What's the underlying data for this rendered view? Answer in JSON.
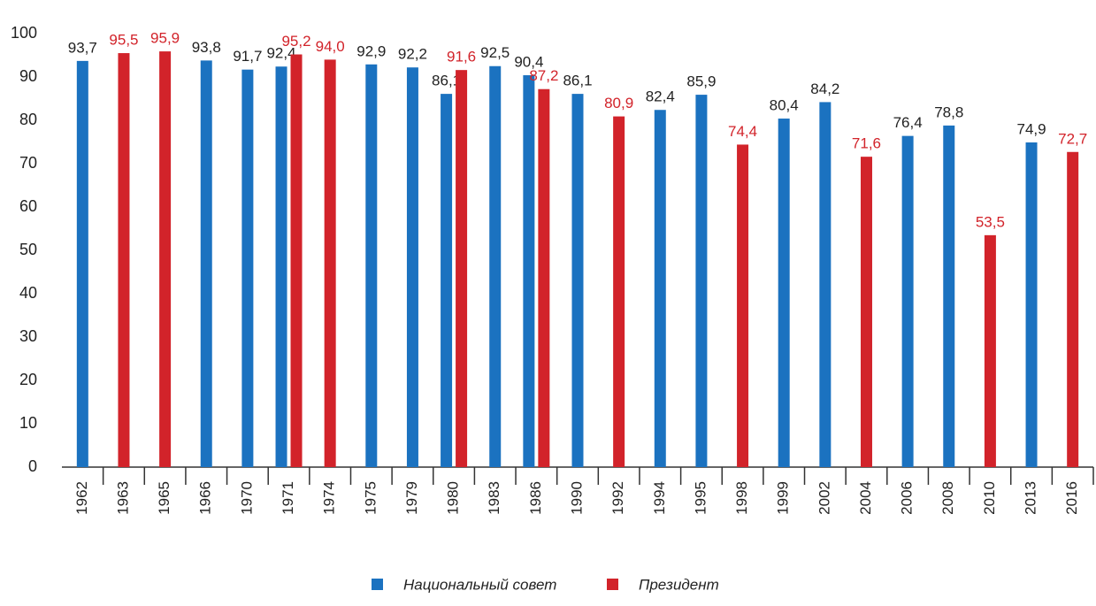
{
  "chart_data": {
    "type": "bar",
    "categories": [
      "1962",
      "1963",
      "1965",
      "1966",
      "1970",
      "1971",
      "1974",
      "1975",
      "1979",
      "1980",
      "1983",
      "1986",
      "1990",
      "1992",
      "1994",
      "1995",
      "1998",
      "1999",
      "2002",
      "2004",
      "2006",
      "2008",
      "2010",
      "2013",
      "2016"
    ],
    "series": [
      {
        "name": "Национальный совет",
        "color": "#1b72c0",
        "label_color": "#222222",
        "values": [
          93.7,
          null,
          null,
          93.8,
          91.7,
          92.4,
          null,
          92.9,
          92.2,
          86.1,
          92.5,
          90.4,
          86.1,
          null,
          82.4,
          85.9,
          null,
          80.4,
          84.2,
          null,
          76.4,
          78.8,
          null,
          74.9,
          null
        ],
        "value_labels": [
          "93,7",
          null,
          null,
          "93,8",
          "91,7",
          "92,4",
          null,
          "92,9",
          "92,2",
          "86,1",
          "92,5",
          "90,4",
          "86,1",
          null,
          "82,4",
          "85,9",
          null,
          "80,4",
          "84,2",
          null,
          "76,4",
          "78,8",
          null,
          "74,9",
          null
        ]
      },
      {
        "name": "Президент",
        "color": "#d2232a",
        "label_color": "#d2232a",
        "values": [
          null,
          95.5,
          95.9,
          null,
          null,
          95.2,
          94.0,
          null,
          null,
          91.6,
          null,
          87.2,
          null,
          80.9,
          null,
          null,
          74.4,
          null,
          null,
          71.6,
          null,
          null,
          53.5,
          null,
          72.7
        ],
        "value_labels": [
          null,
          "95,5",
          "95,9",
          null,
          null,
          "95,2",
          "94,0",
          null,
          null,
          "91,6",
          null,
          "87,2",
          null,
          "80,9",
          null,
          null,
          "74,4",
          null,
          null,
          "71,6",
          null,
          null,
          "53,5",
          null,
          "72,7"
        ]
      }
    ],
    "ylim": [
      0,
      100
    ],
    "yticks": [
      0,
      10,
      20,
      30,
      40,
      50,
      60,
      70,
      80,
      90,
      100
    ],
    "grid": false
  }
}
